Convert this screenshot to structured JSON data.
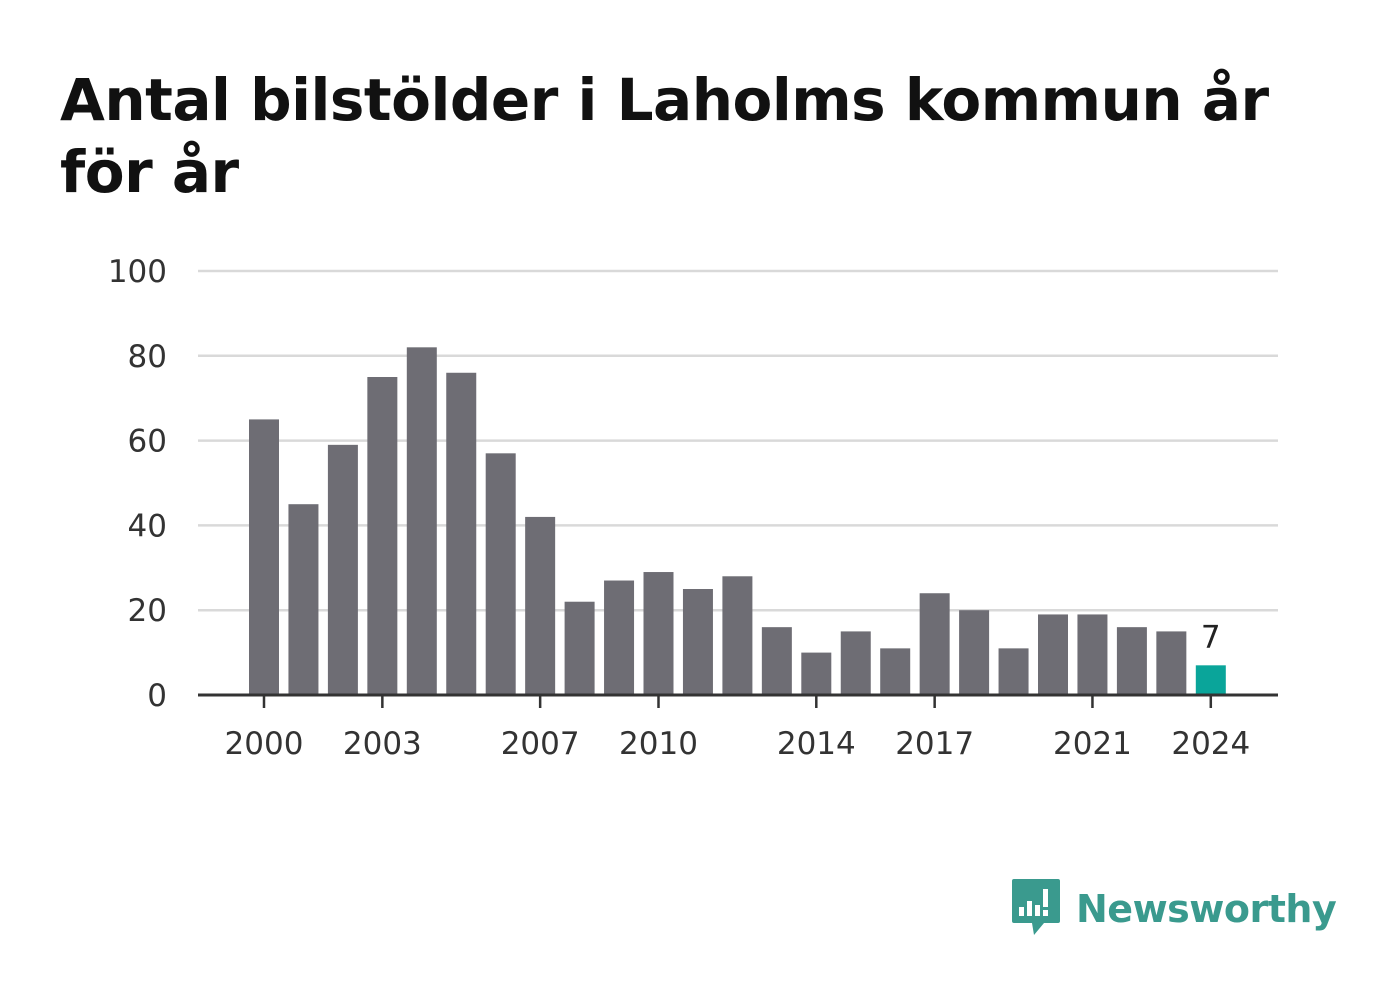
{
  "title": "Antal bilstölder i Laholms kommun år för år",
  "brand": {
    "name": "Newsworthy",
    "icon": "newsworthy-logo-icon",
    "color": "#3a9a8e"
  },
  "colors": {
    "bar": "#6e6d74",
    "highlight": "#0aa59a",
    "grid": "#d9d9d9",
    "axis": "#333333"
  },
  "chart_data": {
    "type": "bar",
    "title": "Antal bilstölder i Laholms kommun år för år",
    "xlabel": "",
    "ylabel": "",
    "categories": [
      2000,
      2001,
      2002,
      2003,
      2004,
      2005,
      2006,
      2007,
      2008,
      2009,
      2010,
      2011,
      2012,
      2013,
      2014,
      2015,
      2016,
      2017,
      2018,
      2019,
      2020,
      2021,
      2022,
      2023,
      2024
    ],
    "values": [
      65,
      45,
      59,
      75,
      82,
      76,
      57,
      42,
      22,
      27,
      29,
      25,
      28,
      16,
      10,
      15,
      11,
      24,
      20,
      11,
      19,
      19,
      16,
      15,
      7
    ],
    "ylim": [
      0,
      100
    ],
    "yticks": [
      0,
      20,
      40,
      60,
      80,
      100
    ],
    "xtick_labels": [
      2000,
      2003,
      2007,
      2010,
      2014,
      2017,
      2021,
      2024
    ],
    "highlight": {
      "category": 2024,
      "label": "7"
    },
    "grid": true,
    "legend": "none"
  }
}
